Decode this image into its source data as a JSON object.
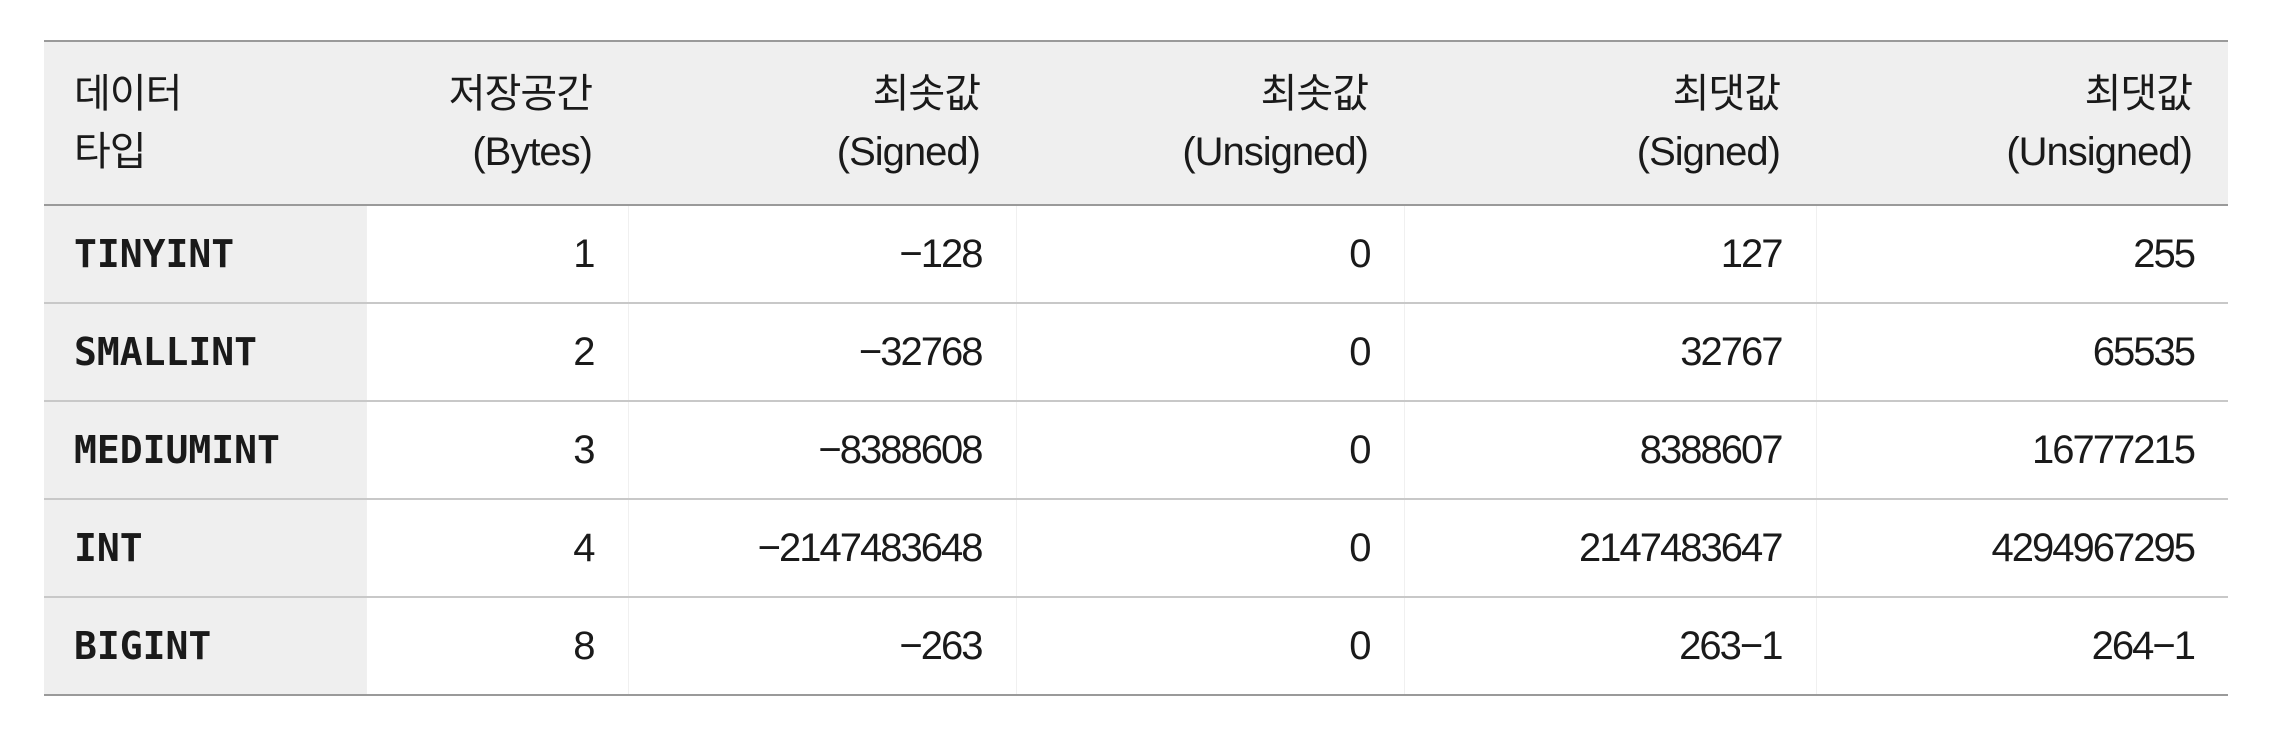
{
  "table": {
    "headers": [
      {
        "line1": "데이터",
        "line2": "타입"
      },
      {
        "line1": "저장공간",
        "line2": "(Bytes)"
      },
      {
        "line1": "최솟값",
        "line2": "(Signed)"
      },
      {
        "line1": "최솟값",
        "line2": "(Unsigned)"
      },
      {
        "line1": "최댓값",
        "line2": "(Signed)"
      },
      {
        "line1": "최댓값",
        "line2": "(Unsigned)"
      }
    ],
    "rows": [
      {
        "type": "TINYINT",
        "bytes": "1",
        "min_signed": "−128",
        "min_unsigned": "0",
        "max_signed": "127",
        "max_unsigned": "255"
      },
      {
        "type": "SMALLINT",
        "bytes": "2",
        "min_signed": "−32768",
        "min_unsigned": "0",
        "max_signed": "32767",
        "max_unsigned": "65535"
      },
      {
        "type": "MEDIUMINT",
        "bytes": "3",
        "min_signed": "−8388608",
        "min_unsigned": "0",
        "max_signed": "8388607",
        "max_unsigned": "16777215"
      },
      {
        "type": "INT",
        "bytes": "4",
        "min_signed": "−2147483648",
        "min_unsigned": "0",
        "max_signed": "2147483647",
        "max_unsigned": "4294967295"
      },
      {
        "type": "BIGINT",
        "bytes": "8",
        "min_signed": "−263",
        "min_unsigned": "0",
        "max_signed": "263−1",
        "max_unsigned": "264−1"
      }
    ]
  }
}
